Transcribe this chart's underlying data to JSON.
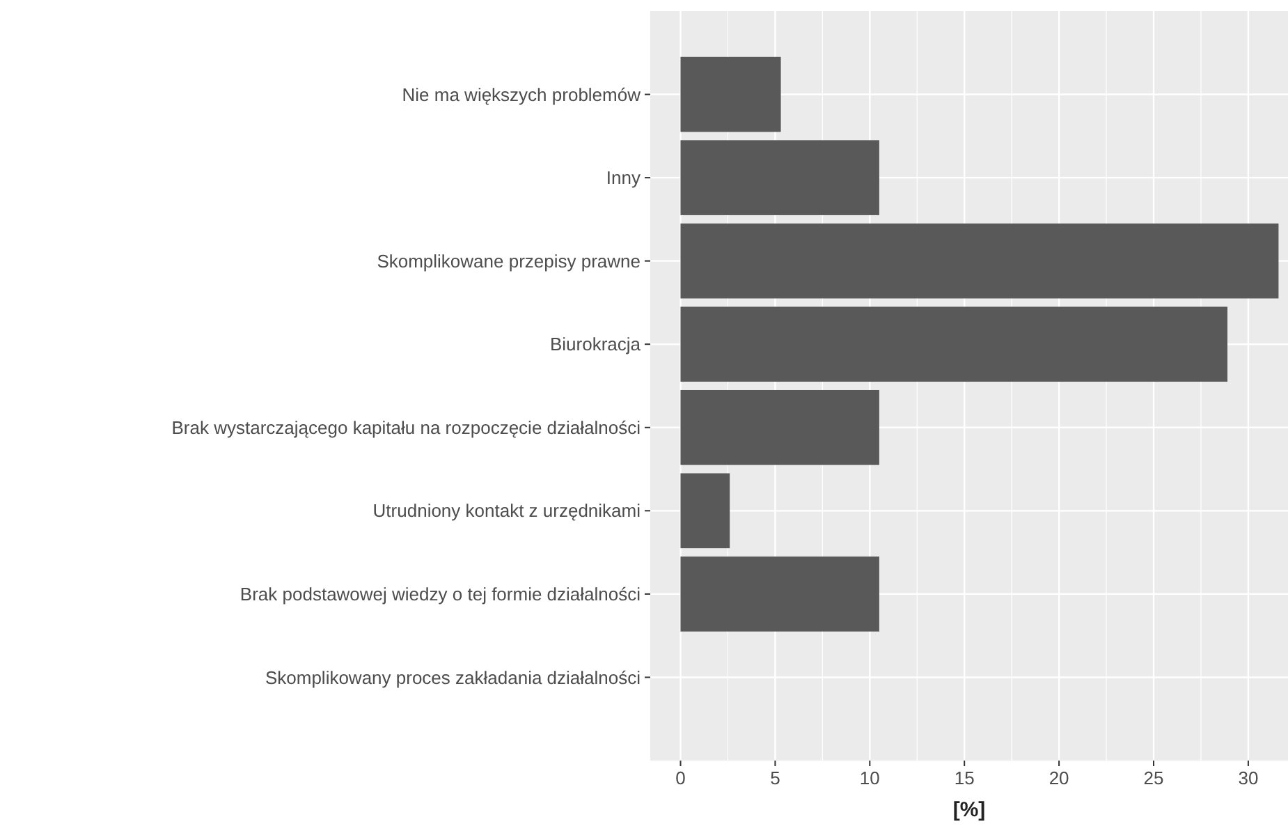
{
  "chart_data": {
    "type": "bar",
    "orientation": "horizontal",
    "xlabel": "[%]",
    "categories": [
      "Nie ma większych problemów",
      "Inny",
      "Skomplikowane przepisy prawne",
      "Biurokracja",
      "Brak wystarczającego kapitału na rozpoczęcie działalności",
      "Utrudniony kontakt z urzędnikami",
      "Brak podstawowej wiedzy o tej formie działalności",
      "Skomplikowany proces zakładania działalności"
    ],
    "values": [
      5.3,
      10.5,
      31.6,
      28.9,
      10.5,
      2.6,
      10.5,
      0
    ],
    "color": "#595959",
    "xlim": [
      -1.6,
      32.1
    ],
    "xticks": [
      0,
      5,
      10,
      15,
      20,
      25,
      30
    ],
    "grid": true
  }
}
